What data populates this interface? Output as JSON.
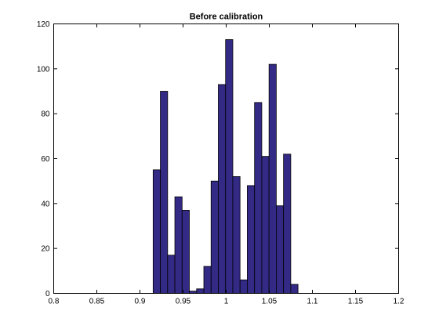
{
  "chart_data": {
    "type": "bar",
    "title": "Before calibration",
    "xlabel": "",
    "ylabel": "",
    "xlim": [
      0.8,
      1.2
    ],
    "ylim": [
      0,
      120
    ],
    "grid": false,
    "bin_width": 0.0084,
    "x": [
      0.9195,
      0.9279,
      0.9363,
      0.9447,
      0.9531,
      0.9615,
      0.9699,
      0.9783,
      0.9867,
      0.9951,
      1.0035,
      1.0119,
      1.0203,
      1.0287,
      1.0371,
      1.0455,
      1.0539,
      1.0623,
      1.0707,
      1.0791,
      1.0875
    ],
    "values": [
      55,
      90,
      17,
      43,
      37,
      1,
      2,
      12,
      50,
      93,
      113,
      52,
      6,
      48,
      85,
      61,
      102,
      39,
      62,
      4,
      0
    ],
    "xticks": [
      0.8,
      0.85,
      0.9,
      0.95,
      1,
      1.05,
      1.1,
      1.15,
      1.2
    ],
    "xtick_labels": [
      "0.8",
      "0.85",
      "0.9",
      "0.95",
      "1",
      "1.05",
      "1.1",
      "1.15",
      "1.2"
    ],
    "yticks": [
      0,
      20,
      40,
      60,
      80,
      100,
      120
    ],
    "ytick_labels": [
      "0",
      "20",
      "40",
      "60",
      "80",
      "100",
      "120"
    ],
    "colors": {
      "bar_fill": "#332a85",
      "bar_edge": "#000000",
      "axes": "#000000",
      "background": "#ffffff"
    }
  }
}
